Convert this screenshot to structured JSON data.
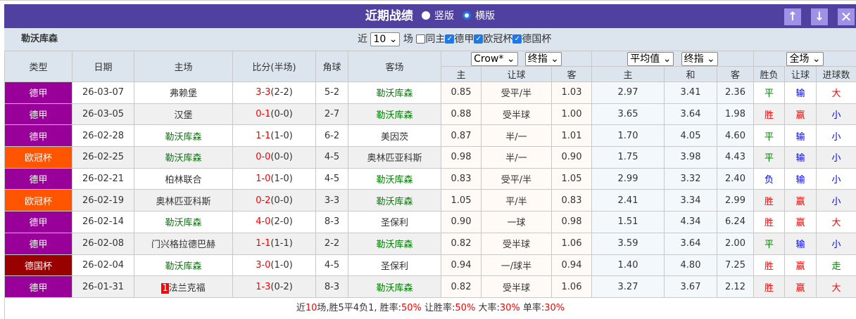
{
  "title": "近期战绩",
  "view_options": [
    {
      "label": "竖版",
      "selected": false
    },
    {
      "label": "横版",
      "selected": true
    }
  ],
  "icons": {
    "up": "arrow-up-icon",
    "down": "arrow-down-icon",
    "close": "close-icon"
  },
  "team": "勒沃库森",
  "filter": {
    "prefix": "近",
    "count": "10",
    "suffix": "场",
    "same_home": "同主",
    "same_home_checked": false,
    "leagues": [
      {
        "label": "德甲",
        "checked": true
      },
      {
        "label": "欧冠杯",
        "checked": true
      },
      {
        "label": "德国杯",
        "checked": true
      }
    ]
  },
  "selects": {
    "company": "Crow*",
    "odds_type1": "终指",
    "avg": "平均值",
    "odds_type2": "终指",
    "period": "全场"
  },
  "headers": {
    "type": "类型",
    "date": "日期",
    "home": "主场",
    "score": "比分(半场)",
    "corner": "角球",
    "away": "客场",
    "h_home": "主",
    "h_handicap": "让球",
    "h_away": "客",
    "e_home": "主",
    "e_draw": "和",
    "e_away": "客",
    "result": "胜负",
    "hc_result": "让球",
    "goals": "进球数"
  },
  "colors": {
    "德甲": "#990099",
    "欧冠杯": "#ff5500",
    "德国杯": "#990000",
    "win": "#ff0000",
    "draw": "#008000",
    "loss": "#0000ff",
    "team": "#008000"
  },
  "rows": [
    {
      "type": "德甲",
      "date": "26-03-07",
      "home": "弗赖堡",
      "ft": "3-3",
      "ht": "(2-2)",
      "corner": "5-2",
      "away": "勒沃库森",
      "h1": "0.85",
      "hc": "受平/半",
      "h2": "1.03",
      "e1": "2.97",
      "ex": "3.41",
      "e2": "2.36",
      "res": "平",
      "hres": "输",
      "gl": "大",
      "team_side": "away"
    },
    {
      "type": "德甲",
      "date": "26-03-05",
      "home": "汉堡",
      "ft": "0-1",
      "ht": "(0-0)",
      "corner": "2-7",
      "away": "勒沃库森",
      "h1": "0.88",
      "hc": "受半球",
      "h2": "1.00",
      "e1": "3.65",
      "ex": "3.64",
      "e2": "1.98",
      "res": "胜",
      "hres": "赢",
      "gl": "小",
      "team_side": "away"
    },
    {
      "type": "德甲",
      "date": "26-02-28",
      "home": "勒沃库森",
      "ft": "1-1",
      "ht": "(1-0)",
      "corner": "6-2",
      "away": "美因茨",
      "h1": "0.87",
      "hc": "半/一",
      "h2": "1.01",
      "e1": "1.70",
      "ex": "4.05",
      "e2": "4.60",
      "res": "平",
      "hres": "输",
      "gl": "小",
      "team_side": "home"
    },
    {
      "type": "欧冠杯",
      "date": "26-02-25",
      "home": "勒沃库森",
      "ft": "0-0",
      "ht": "(0-0)",
      "corner": "4-5",
      "away": "奥林匹亚科斯",
      "h1": "0.98",
      "hc": "半/一",
      "h2": "0.90",
      "e1": "1.75",
      "ex": "3.98",
      "e2": "4.43",
      "res": "平",
      "hres": "输",
      "gl": "小",
      "team_side": "home"
    },
    {
      "type": "德甲",
      "date": "26-02-21",
      "home": "柏林联合",
      "ft": "1-0",
      "ht": "(1-0)",
      "corner": "4-5",
      "away": "勒沃库森",
      "h1": "0.83",
      "hc": "受平/半",
      "h2": "1.05",
      "e1": "2.99",
      "ex": "3.32",
      "e2": "2.40",
      "res": "负",
      "hres": "输",
      "gl": "小",
      "team_side": "away"
    },
    {
      "type": "欧冠杯",
      "date": "26-02-19",
      "home": "奥林匹亚科斯",
      "ft": "0-2",
      "ht": "(0-0)",
      "corner": "3-3",
      "away": "勒沃库森",
      "h1": "1.05",
      "hc": "平/半",
      "h2": "0.83",
      "e1": "2.41",
      "ex": "3.34",
      "e2": "2.99",
      "res": "胜",
      "hres": "赢",
      "gl": "小",
      "team_side": "away"
    },
    {
      "type": "德甲",
      "date": "26-02-14",
      "home": "勒沃库森",
      "ft": "4-0",
      "ht": "(2-0)",
      "corner": "8-3",
      "away": "圣保利",
      "h1": "0.90",
      "hc": "一球",
      "h2": "0.98",
      "e1": "1.51",
      "ex": "4.34",
      "e2": "6.24",
      "res": "胜",
      "hres": "赢",
      "gl": "大",
      "team_side": "home"
    },
    {
      "type": "德甲",
      "date": "26-02-08",
      "home": "门兴格拉德巴赫",
      "ft": "1-1",
      "ht": "(1-1)",
      "corner": "2-2",
      "away": "勒沃库森",
      "h1": "0.82",
      "hc": "受半球",
      "h2": "1.06",
      "e1": "3.59",
      "ex": "3.64",
      "e2": "2.00",
      "res": "平",
      "hres": "输",
      "gl": "小",
      "team_side": "away"
    },
    {
      "type": "德国杯",
      "date": "26-02-04",
      "home": "勒沃库森",
      "ft": "3-0",
      "ht": "(1-0)",
      "corner": "4-5",
      "away": "圣保利",
      "h1": "0.94",
      "hc": "一/球半",
      "h2": "0.94",
      "e1": "1.40",
      "ex": "4.80",
      "e2": "7.25",
      "res": "胜",
      "hres": "赢",
      "gl": "走",
      "team_side": "home"
    },
    {
      "type": "德甲",
      "date": "26-01-31",
      "home": "法兰克福",
      "home_badge": "1",
      "ft": "1-3",
      "ht": "(0-2)",
      "corner": "8-3",
      "away": "勒沃库森",
      "h1": "0.82",
      "hc": "受半球",
      "h2": "1.06",
      "e1": "3.27",
      "ex": "3.67",
      "e2": "2.12",
      "res": "胜",
      "hres": "赢",
      "gl": "大",
      "team_side": "away"
    }
  ],
  "summary": {
    "p1": "近",
    "n": "10",
    "p2": "场,胜5平4负1, 胜率:",
    "win": "50%",
    "p3": " 让胜率:",
    "hwin": "50%",
    "p4": " 大率:",
    "big": "30%",
    "p5": " 单率:",
    "odd": "30%"
  }
}
